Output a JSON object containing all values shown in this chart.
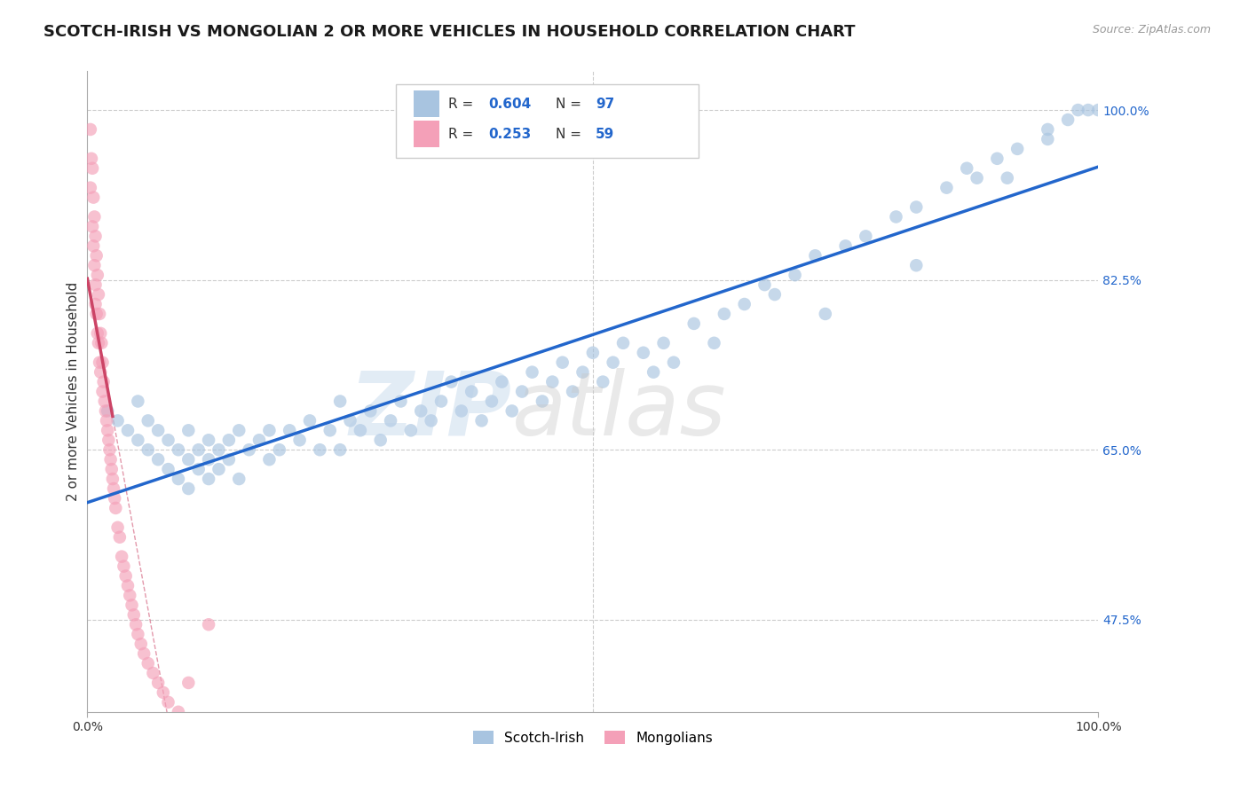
{
  "title": "SCOTCH-IRISH VS MONGOLIAN 2 OR MORE VEHICLES IN HOUSEHOLD CORRELATION CHART",
  "source": "Source: ZipAtlas.com",
  "ylabel": "2 or more Vehicles in Household",
  "xlim": [
    0.0,
    1.0
  ],
  "ylim": [
    0.38,
    1.04
  ],
  "ytick_vals": [
    0.475,
    0.65,
    0.825,
    1.0
  ],
  "ytick_labels": [
    "47.5%",
    "65.0%",
    "82.5%",
    "100.0%"
  ],
  "xtick_vals": [
    0.0,
    1.0
  ],
  "xtick_labels": [
    "0.0%",
    "100.0%"
  ],
  "grid_color": "#cccccc",
  "background_color": "#ffffff",
  "blue_scatter_color": "#a8c4e0",
  "pink_scatter_color": "#f4a0b8",
  "blue_line_color": "#2266cc",
  "pink_line_color": "#cc4466",
  "R_blue": 0.604,
  "N_blue": 97,
  "R_pink": 0.253,
  "N_pink": 59,
  "legend_text_color": "#2266cc",
  "scotch_irish_x": [
    0.02,
    0.03,
    0.04,
    0.05,
    0.05,
    0.06,
    0.06,
    0.07,
    0.07,
    0.08,
    0.08,
    0.09,
    0.09,
    0.1,
    0.1,
    0.1,
    0.11,
    0.11,
    0.12,
    0.12,
    0.12,
    0.13,
    0.13,
    0.14,
    0.14,
    0.15,
    0.15,
    0.16,
    0.17,
    0.18,
    0.18,
    0.19,
    0.2,
    0.21,
    0.22,
    0.23,
    0.24,
    0.25,
    0.25,
    0.26,
    0.27,
    0.28,
    0.29,
    0.3,
    0.31,
    0.32,
    0.33,
    0.34,
    0.35,
    0.36,
    0.37,
    0.38,
    0.39,
    0.4,
    0.41,
    0.42,
    0.43,
    0.44,
    0.45,
    0.46,
    0.47,
    0.48,
    0.49,
    0.5,
    0.51,
    0.52,
    0.53,
    0.55,
    0.56,
    0.57,
    0.58,
    0.6,
    0.62,
    0.63,
    0.65,
    0.67,
    0.68,
    0.7,
    0.72,
    0.75,
    0.77,
    0.8,
    0.82,
    0.85,
    0.87,
    0.88,
    0.9,
    0.92,
    0.95,
    0.97,
    0.99,
    0.73,
    0.82,
    0.91,
    0.95,
    0.98,
    1.0
  ],
  "scotch_irish_y": [
    0.69,
    0.68,
    0.67,
    0.7,
    0.66,
    0.68,
    0.65,
    0.67,
    0.64,
    0.66,
    0.63,
    0.65,
    0.62,
    0.64,
    0.67,
    0.61,
    0.63,
    0.65,
    0.64,
    0.62,
    0.66,
    0.63,
    0.65,
    0.64,
    0.66,
    0.62,
    0.67,
    0.65,
    0.66,
    0.67,
    0.64,
    0.65,
    0.67,
    0.66,
    0.68,
    0.65,
    0.67,
    0.7,
    0.65,
    0.68,
    0.67,
    0.69,
    0.66,
    0.68,
    0.7,
    0.67,
    0.69,
    0.68,
    0.7,
    0.72,
    0.69,
    0.71,
    0.68,
    0.7,
    0.72,
    0.69,
    0.71,
    0.73,
    0.7,
    0.72,
    0.74,
    0.71,
    0.73,
    0.75,
    0.72,
    0.74,
    0.76,
    0.75,
    0.73,
    0.76,
    0.74,
    0.78,
    0.76,
    0.79,
    0.8,
    0.82,
    0.81,
    0.83,
    0.85,
    0.86,
    0.87,
    0.89,
    0.9,
    0.92,
    0.94,
    0.93,
    0.95,
    0.96,
    0.97,
    0.99,
    1.0,
    0.79,
    0.84,
    0.93,
    0.98,
    1.0,
    1.0
  ],
  "mongolian_x": [
    0.003,
    0.003,
    0.004,
    0.005,
    0.005,
    0.006,
    0.006,
    0.007,
    0.007,
    0.008,
    0.008,
    0.008,
    0.009,
    0.009,
    0.01,
    0.01,
    0.011,
    0.011,
    0.012,
    0.012,
    0.013,
    0.013,
    0.014,
    0.015,
    0.015,
    0.016,
    0.017,
    0.018,
    0.019,
    0.02,
    0.021,
    0.022,
    0.023,
    0.024,
    0.025,
    0.026,
    0.027,
    0.028,
    0.03,
    0.032,
    0.034,
    0.036,
    0.038,
    0.04,
    0.042,
    0.044,
    0.046,
    0.048,
    0.05,
    0.053,
    0.056,
    0.06,
    0.065,
    0.07,
    0.075,
    0.08,
    0.09,
    0.1,
    0.12
  ],
  "mongolian_y": [
    0.98,
    0.92,
    0.95,
    0.88,
    0.94,
    0.86,
    0.91,
    0.84,
    0.89,
    0.82,
    0.87,
    0.8,
    0.85,
    0.79,
    0.83,
    0.77,
    0.81,
    0.76,
    0.79,
    0.74,
    0.77,
    0.73,
    0.76,
    0.74,
    0.71,
    0.72,
    0.7,
    0.69,
    0.68,
    0.67,
    0.66,
    0.65,
    0.64,
    0.63,
    0.62,
    0.61,
    0.6,
    0.59,
    0.57,
    0.56,
    0.54,
    0.53,
    0.52,
    0.51,
    0.5,
    0.49,
    0.48,
    0.47,
    0.46,
    0.45,
    0.44,
    0.43,
    0.42,
    0.41,
    0.4,
    0.39,
    0.38,
    0.41,
    0.47
  ]
}
